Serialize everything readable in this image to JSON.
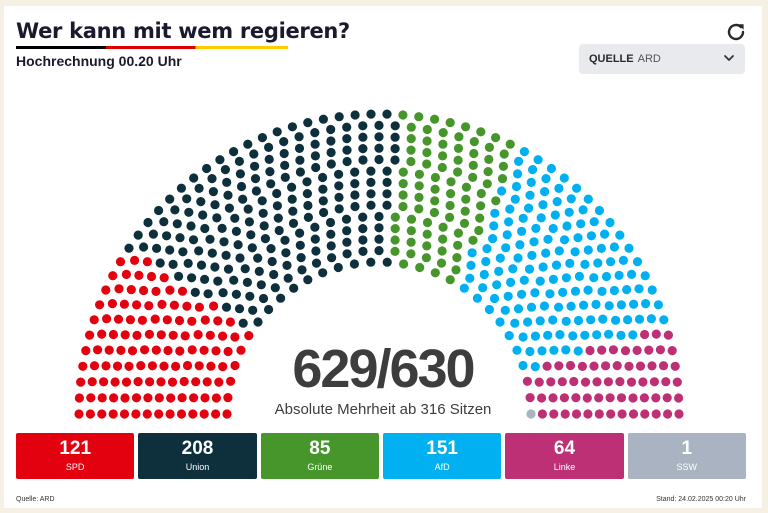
{
  "header": {
    "title": "Wer kann mit wem regieren?",
    "subtitle": "Hochrechnung 00.20 Uhr"
  },
  "controls": {
    "refresh_icon": "refresh-icon",
    "source_label": "QUELLE",
    "source_value": "ARD",
    "chevron_icon": "chevron-down-icon"
  },
  "summary": {
    "seats_text": "629/630",
    "majority_text": "Absolute Mehrheit ab 316 Sitzen"
  },
  "chart_data": {
    "type": "parliament",
    "total_seats": 630,
    "parties": [
      {
        "name": "SPD",
        "seats": 121,
        "color": "#e3000f"
      },
      {
        "name": "Union",
        "seats": 208,
        "color": "#0e2f3c"
      },
      {
        "name": "Grüne",
        "seats": 85,
        "color": "#46962b"
      },
      {
        "name": "AfD",
        "seats": 151,
        "color": "#00b0f0"
      },
      {
        "name": "Linke",
        "seats": 64,
        "color": "#be3075"
      },
      {
        "name": "SSW",
        "seats": 1,
        "color": "#a9b3c2"
      }
    ]
  },
  "footer": {
    "source": "Quelle: ARD",
    "timestamp": "Stand: 24.02.2025 00:20 Uhr"
  }
}
